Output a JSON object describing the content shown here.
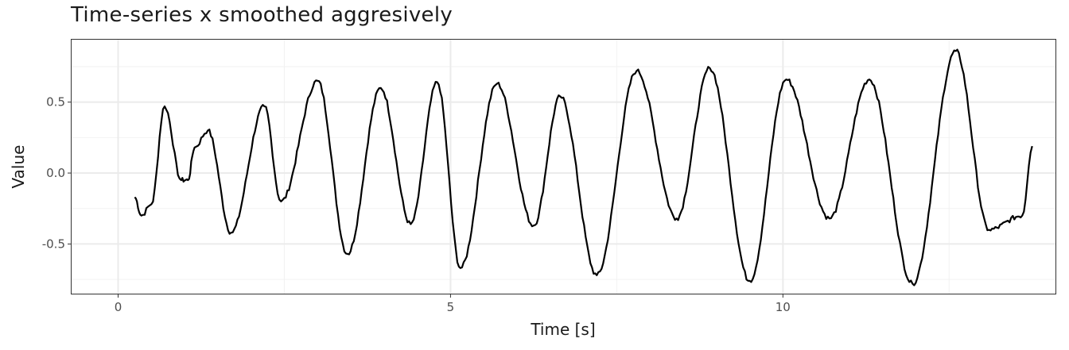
{
  "chart_data": {
    "type": "line",
    "title": "Time-series x smoothed aggresively",
    "xlabel": "Time [s]",
    "ylabel": "Value",
    "xlim": [
      -0.7,
      14.1
    ],
    "ylim": [
      -0.85,
      0.94
    ],
    "x_ticks": [
      0,
      5,
      10
    ],
    "x_tick_labels": [
      "0",
      "5",
      "10"
    ],
    "y_ticks": [
      -0.5,
      0.0,
      0.5
    ],
    "y_tick_labels": [
      "-0.5",
      "0.0",
      "0.5"
    ],
    "grid": true,
    "legend": "none",
    "line_color": "#000000",
    "series": [
      {
        "x": [
          0.25,
          0.35,
          0.5,
          0.7,
          0.95,
          1.05,
          1.15,
          1.35,
          1.7,
          2.2,
          2.45,
          3.0,
          3.45,
          3.95,
          4.4,
          4.8,
          5.15,
          5.7,
          6.25,
          6.65,
          7.2,
          7.8,
          8.4,
          8.9,
          9.5,
          10.05,
          10.7,
          11.3,
          11.95,
          12.6,
          13.1,
          13.6,
          13.75
        ],
        "y": [
          -0.17,
          -0.3,
          -0.22,
          0.47,
          -0.05,
          -0.05,
          0.18,
          0.3,
          -0.42,
          0.47,
          -0.2,
          0.65,
          -0.57,
          0.6,
          -0.36,
          0.64,
          -0.67,
          0.63,
          -0.37,
          0.54,
          -0.72,
          0.72,
          -0.32,
          0.74,
          -0.76,
          0.66,
          -0.32,
          0.66,
          -0.78,
          0.86,
          -0.4,
          -0.3,
          0.19
        ]
      }
    ]
  }
}
